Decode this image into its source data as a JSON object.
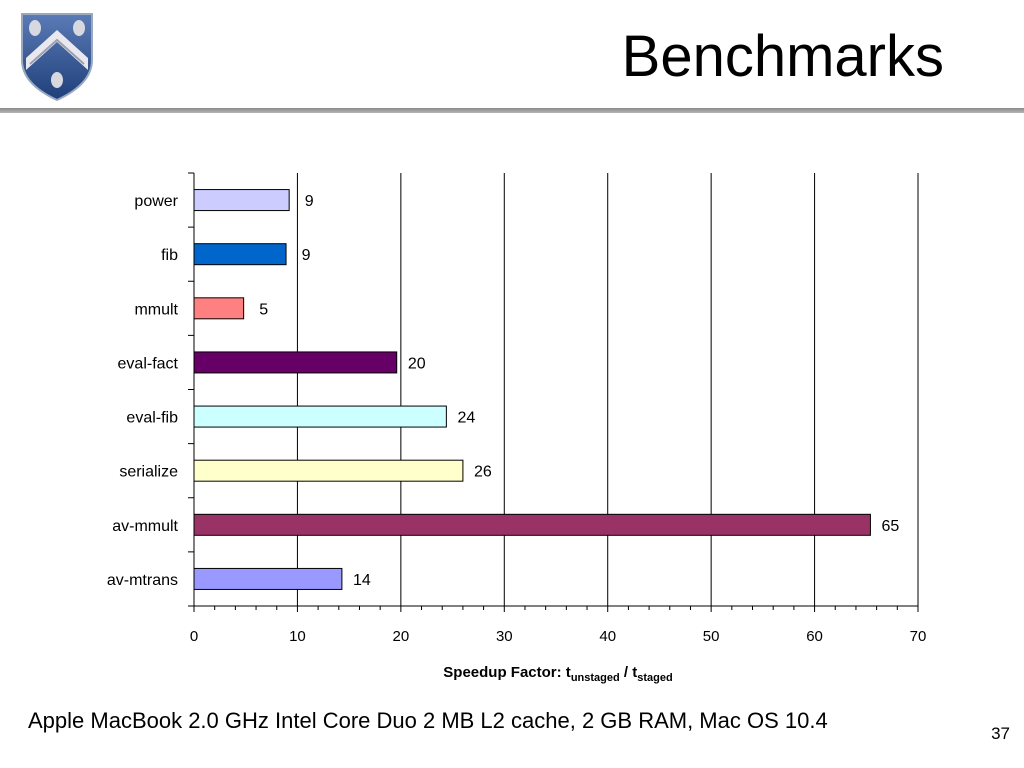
{
  "slide": {
    "title": "Benchmarks",
    "footer": "Apple MacBook 2.0 GHz Intel Core Duo 2 MB L2 cache, 2 GB RAM, Mac OS 10.4",
    "page_number": "37"
  },
  "chart_data": {
    "type": "bar",
    "orientation": "horizontal",
    "title": "",
    "xlabel_parts": {
      "main": "Speedup Factor: t",
      "sub1": "unstaged",
      "mid": " / t",
      "sub2": "staged"
    },
    "categories": [
      "power",
      "fib",
      "mmult",
      "eval-fact",
      "eval-fib",
      "serialize",
      "av-mmult",
      "av-mtrans"
    ],
    "values": [
      9.2,
      8.9,
      4.8,
      19.6,
      24.4,
      26.0,
      65.4,
      14.3
    ],
    "value_labels": [
      "9",
      "9",
      "5",
      "20",
      "24",
      "26",
      "65",
      "14"
    ],
    "colors": [
      "#ccccff",
      "#0066cc",
      "#ff8080",
      "#660066",
      "#ccffff",
      "#ffffcc",
      "#993366",
      "#9999ff"
    ],
    "xlim": [
      0,
      70
    ],
    "xticks": [
      0,
      10,
      20,
      30,
      40,
      50,
      60,
      70
    ],
    "grid": true,
    "legend": "none"
  }
}
